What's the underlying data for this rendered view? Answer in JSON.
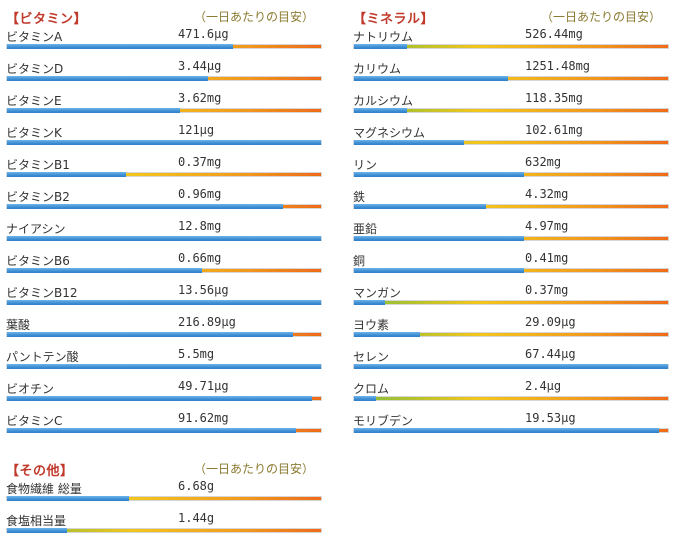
{
  "vitamins": {
    "title": "【ビタミン】",
    "note": "（一日あたりの目安）",
    "items": [
      {
        "name": "ビタミンA",
        "value": "471.6μg",
        "pct": 0.72
      },
      {
        "name": "ビタミンD",
        "value": "3.44μg",
        "pct": 0.64
      },
      {
        "name": "ビタミンE",
        "value": "3.62mg",
        "pct": 0.55
      },
      {
        "name": "ビタミンK",
        "value": "121μg",
        "pct": 1.0
      },
      {
        "name": "ビタミンB1",
        "value": "0.37mg",
        "pct": 0.38
      },
      {
        "name": "ビタミンB2",
        "value": "0.96mg",
        "pct": 0.88
      },
      {
        "name": "ナイアシン",
        "value": "12.8mg",
        "pct": 1.0
      },
      {
        "name": "ビタミンB6",
        "value": "0.66mg",
        "pct": 0.62
      },
      {
        "name": "ビタミンB12",
        "value": "13.56μg",
        "pct": 1.0
      },
      {
        "name": "葉酸",
        "value": "216.89μg",
        "pct": 0.91
      },
      {
        "name": "パントテン酸",
        "value": "5.5mg",
        "pct": 1.0
      },
      {
        "name": "ビオチン",
        "value": "49.71μg",
        "pct": 0.97
      },
      {
        "name": "ビタミンC",
        "value": "91.62mg",
        "pct": 0.92
      }
    ]
  },
  "minerals": {
    "title": "【ミネラル】",
    "note": "（一日あたりの目安）",
    "items": [
      {
        "name": "ナトリウム",
        "value": "526.44mg",
        "pct": 0.17
      },
      {
        "name": "カリウム",
        "value": "1251.48mg",
        "pct": 0.49
      },
      {
        "name": "カルシウム",
        "value": "118.35mg",
        "pct": 0.17
      },
      {
        "name": "マグネシウム",
        "value": "102.61mg",
        "pct": 0.35
      },
      {
        "name": "リン",
        "value": "632mg",
        "pct": 0.54
      },
      {
        "name": "鉄",
        "value": "4.32mg",
        "pct": 0.42
      },
      {
        "name": "亜鉛",
        "value": "4.97mg",
        "pct": 0.54
      },
      {
        "name": "銅",
        "value": "0.41mg",
        "pct": 0.54
      },
      {
        "name": "マンガン",
        "value": "0.37mg",
        "pct": 0.1
      },
      {
        "name": "ヨウ素",
        "value": "29.09μg",
        "pct": 0.21
      },
      {
        "name": "セレン",
        "value": "67.44μg",
        "pct": 1.0
      },
      {
        "name": "クロム",
        "value": "2.4μg",
        "pct": 0.07
      },
      {
        "name": "モリブデン",
        "value": "19.53μg",
        "pct": 0.97
      }
    ]
  },
  "others": {
    "title": "【その他】",
    "note": "（一日あたりの目安）",
    "items": [
      {
        "name": "食物繊維 総量",
        "value": "6.68g",
        "pct": 0.39
      },
      {
        "name": "食塩相当量",
        "value": "1.44g",
        "pct": 0.19
      }
    ]
  },
  "colors": {
    "title": "#c0392b",
    "note": "#8a7a30",
    "fill": "#3d8fd6",
    "track_end": "#ee6a1a"
  }
}
